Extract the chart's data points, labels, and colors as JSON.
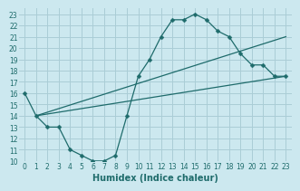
{
  "xlabel": "Humidex (Indice chaleur)",
  "bg_color": "#cce8ef",
  "grid_color": "#aacdd6",
  "line_color": "#1e6b6b",
  "xlim": [
    -0.5,
    23.5
  ],
  "ylim": [
    10,
    23.5
  ],
  "xticks": [
    0,
    1,
    2,
    3,
    4,
    5,
    6,
    7,
    8,
    9,
    10,
    11,
    12,
    13,
    14,
    15,
    16,
    17,
    18,
    19,
    20,
    21,
    22,
    23
  ],
  "yticks": [
    10,
    11,
    12,
    13,
    14,
    15,
    16,
    17,
    18,
    19,
    20,
    21,
    22,
    23
  ],
  "line1_x": [
    0,
    1,
    2,
    3,
    4,
    5,
    6,
    7,
    8,
    9,
    10,
    11,
    12,
    13,
    14,
    15,
    16,
    17,
    18,
    19,
    20,
    21,
    22,
    23
  ],
  "line1_y": [
    16,
    14,
    13,
    13,
    11,
    10.5,
    10,
    10,
    10.5,
    14,
    17.5,
    19,
    21,
    22.5,
    22.5,
    23,
    22.5,
    21.5,
    21,
    19.5,
    18.5,
    18.5,
    17.5,
    17.5
  ],
  "line2_x": [
    1,
    23
  ],
  "line2_y": [
    14,
    17.5
  ],
  "line3_x": [
    1,
    23
  ],
  "line3_y": [
    14,
    21
  ],
  "marker": "D",
  "markersize": 2.5,
  "tick_fontsize": 5.5,
  "xlabel_fontsize": 7.0
}
